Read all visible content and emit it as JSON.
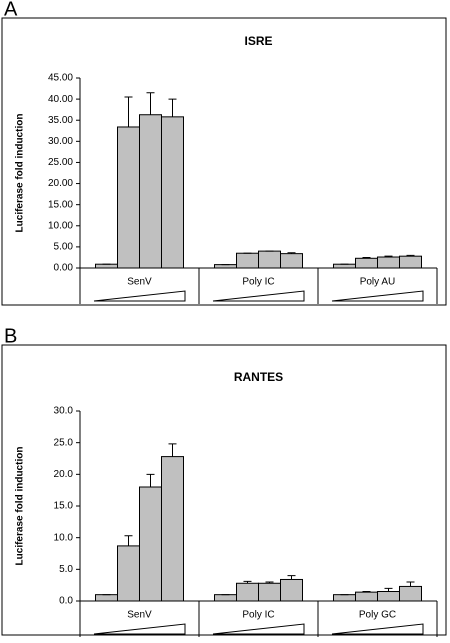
{
  "chart_data": [
    {
      "type": "bar",
      "panel_label": "A",
      "title": "ISRE",
      "y_label": "Luciferase fold induction",
      "ylim": [
        0,
        45
      ],
      "yticks": [
        {
          "value": 0,
          "label": "0.00"
        },
        {
          "value": 5,
          "label": "5.00"
        },
        {
          "value": 10,
          "label": "10.00"
        },
        {
          "value": 15,
          "label": "15.00"
        },
        {
          "value": 20,
          "label": "20.00"
        },
        {
          "value": 25,
          "label": "25.00"
        },
        {
          "value": 30,
          "label": "30.00"
        },
        {
          "value": 35,
          "label": "35.00"
        },
        {
          "value": 40,
          "label": "40.00"
        },
        {
          "value": 45,
          "label": "45.00"
        }
      ],
      "color": "#c0c0c0",
      "groups": [
        {
          "name": "SenV",
          "values": [
            0.9,
            33.4,
            36.3,
            35.8
          ],
          "errors": [
            0,
            7.1,
            5.2,
            4.2
          ]
        },
        {
          "name": "Poly IC",
          "values": [
            0.8,
            3.5,
            4.0,
            3.4
          ],
          "errors": [
            0,
            0,
            0,
            0.2
          ]
        },
        {
          "name": "Poly AU",
          "values": [
            0.9,
            2.3,
            2.6,
            2.8
          ],
          "errors": [
            0,
            0.2,
            0.2,
            0.2
          ]
        }
      ]
    },
    {
      "type": "bar",
      "panel_label": "B",
      "title": "RANTES",
      "y_label": "Luciferase fold induction",
      "ylim": [
        0,
        30
      ],
      "yticks": [
        {
          "value": 0,
          "label": "0.0"
        },
        {
          "value": 5,
          "label": "5.0"
        },
        {
          "value": 10,
          "label": "10.0"
        },
        {
          "value": 15,
          "label": "15.0"
        },
        {
          "value": 20,
          "label": "20.0"
        },
        {
          "value": 25,
          "label": "25.0"
        },
        {
          "value": 30,
          "label": "30.0"
        }
      ],
      "color": "#c0c0c0",
      "groups": [
        {
          "name": "SenV",
          "values": [
            1.0,
            8.7,
            18.0,
            22.8
          ],
          "errors": [
            0,
            1.6,
            2.0,
            2.0
          ]
        },
        {
          "name": "Poly IC",
          "values": [
            1.0,
            2.8,
            2.8,
            3.4
          ],
          "errors": [
            0,
            0.3,
            0.2,
            0.6
          ]
        },
        {
          "name": "Poly GC",
          "values": [
            1.0,
            1.4,
            1.5,
            2.3
          ],
          "errors": [
            0,
            0.1,
            0.5,
            0.7
          ]
        }
      ]
    }
  ]
}
